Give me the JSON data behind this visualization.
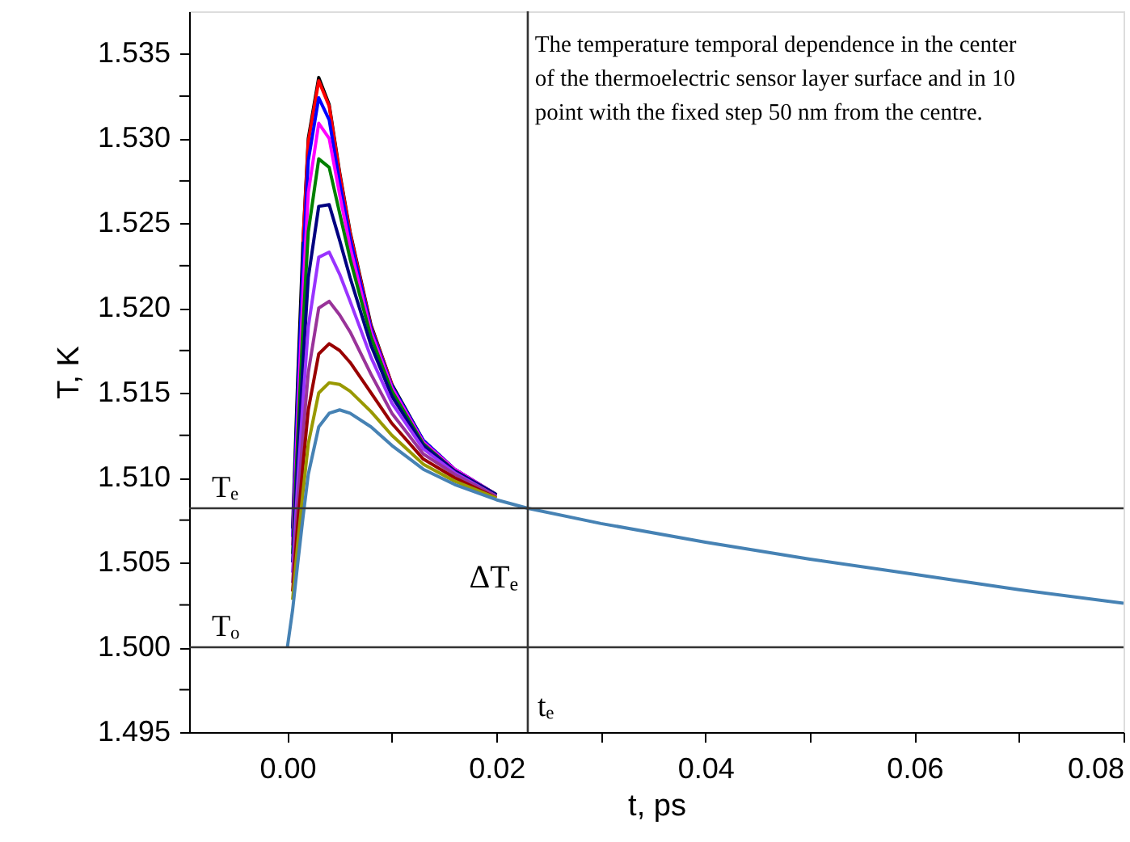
{
  "chart_data": {
    "type": "line",
    "xlabel": "t, ps",
    "ylabel": "T, K",
    "x": [
      0,
      0.0005,
      0.001,
      0.0015,
      0.002,
      0.003,
      0.004,
      0.005,
      0.006,
      0.008,
      0.01,
      0.013,
      0.016,
      0.02,
      0.023,
      0.03,
      0.04,
      0.05,
      0.06,
      0.07,
      0.08
    ],
    "series": [
      {
        "color": "#000000",
        "values": [
          null,
          1.507,
          1.516,
          1.524,
          1.53,
          1.5336,
          1.532,
          1.528,
          1.5245,
          1.519,
          1.5155,
          1.5122,
          1.5105,
          1.509,
          null,
          null,
          null,
          null,
          null,
          null,
          null
        ]
      },
      {
        "color": "#ff0000",
        "values": [
          null,
          null,
          null,
          1.5239,
          1.5298,
          1.5334,
          1.5319,
          1.5279,
          1.5244,
          1.5189,
          1.5155,
          null,
          null,
          null,
          null,
          null,
          null,
          null,
          null,
          null,
          null
        ]
      },
      {
        "color": "#0000ff",
        "values": [
          null,
          1.5065,
          1.515,
          1.5228,
          1.5287,
          1.5324,
          1.5311,
          1.5274,
          1.5241,
          1.5188,
          1.5154,
          1.5122,
          1.5105,
          1.509,
          null,
          null,
          null,
          null,
          null,
          null,
          null
        ]
      },
      {
        "color": "#ff00ff",
        "values": [
          null,
          1.506,
          1.5138,
          1.521,
          1.5268,
          1.5309,
          1.53,
          1.5267,
          1.5236,
          1.5186,
          1.5153,
          1.5121,
          1.5105,
          1.509,
          null,
          null,
          null,
          null,
          null,
          null,
          null
        ]
      },
      {
        "color": "#008000",
        "values": [
          null,
          1.5055,
          1.5125,
          1.519,
          1.5245,
          1.5288,
          1.5283,
          1.5256,
          1.5229,
          1.5183,
          1.5151,
          1.512,
          1.5104,
          1.509,
          null,
          null,
          null,
          null,
          null,
          null,
          null
        ]
      },
      {
        "color": "#000080",
        "values": [
          null,
          1.505,
          1.5112,
          1.5168,
          1.5218,
          1.526,
          1.5261,
          1.524,
          1.5218,
          1.5178,
          1.5148,
          1.5119,
          1.5104,
          1.509,
          null,
          null,
          null,
          null,
          null,
          null,
          null
        ]
      },
      {
        "color": "#9933ff",
        "values": [
          null,
          1.5044,
          1.5098,
          1.5146,
          1.5189,
          1.523,
          1.5233,
          1.522,
          1.5204,
          1.5171,
          1.5144,
          1.5117,
          1.5103,
          1.5089,
          null,
          null,
          null,
          null,
          null,
          null,
          null
        ]
      },
      {
        "color": "#993399",
        "values": [
          null,
          1.5038,
          1.5085,
          1.5126,
          1.5162,
          1.52,
          1.5204,
          1.5196,
          1.5186,
          1.5161,
          1.5138,
          1.5114,
          1.5102,
          1.5089,
          null,
          null,
          null,
          null,
          null,
          null,
          null
        ]
      },
      {
        "color": "#990000",
        "values": [
          null,
          1.5033,
          1.5073,
          1.5108,
          1.514,
          1.5173,
          1.5179,
          1.5175,
          1.5168,
          1.515,
          1.5132,
          1.5111,
          1.51,
          1.5088,
          null,
          null,
          null,
          null,
          null,
          null,
          null
        ]
      },
      {
        "color": "#999900",
        "values": [
          null,
          1.5028,
          1.5062,
          1.5092,
          1.512,
          1.515,
          1.5156,
          1.5155,
          1.5151,
          1.5139,
          1.5125,
          1.5108,
          1.5098,
          1.5088,
          null,
          null,
          null,
          null,
          null,
          null,
          null
        ]
      },
      {
        "color": "#4682b4",
        "values": [
          1.5,
          1.5022,
          1.505,
          1.5077,
          1.5102,
          1.513,
          1.5138,
          1.514,
          1.5138,
          1.513,
          1.5119,
          1.5105,
          1.5096,
          1.5087,
          1.5082,
          1.5073,
          1.5062,
          1.5052,
          1.5043,
          1.5034,
          1.5026
        ]
      }
    ],
    "xlim": [
      -0.0094,
      0.08
    ],
    "xticks": [
      {
        "value": 0.0,
        "label": "0.00"
      },
      {
        "value": 0.01,
        "label": null
      },
      {
        "value": 0.02,
        "label": "0.02"
      },
      {
        "value": 0.03,
        "label": null
      },
      {
        "value": 0.04,
        "label": "0.04"
      },
      {
        "value": 0.05,
        "label": null
      },
      {
        "value": 0.06,
        "label": "0.06"
      },
      {
        "value": 0.07,
        "label": null
      },
      {
        "value": 0.08,
        "label": "0.08"
      }
    ],
    "ylim": [
      1.495,
      1.5375
    ],
    "yticks": [
      {
        "value": 1.495,
        "label": "1.495"
      },
      {
        "value": 1.4975,
        "label": null
      },
      {
        "value": 1.5,
        "label": "1.500"
      },
      {
        "value": 1.5025,
        "label": null
      },
      {
        "value": 1.505,
        "label": "1.505"
      },
      {
        "value": 1.5075,
        "label": null
      },
      {
        "value": 1.51,
        "label": "1.510"
      },
      {
        "value": 1.5125,
        "label": null
      },
      {
        "value": 1.515,
        "label": "1.515"
      },
      {
        "value": 1.5175,
        "label": null
      },
      {
        "value": 1.52,
        "label": "1.520"
      },
      {
        "value": 1.5225,
        "label": null
      },
      {
        "value": 1.525,
        "label": "1.525"
      },
      {
        "value": 1.5275,
        "label": null
      },
      {
        "value": 1.53,
        "label": "1.530"
      },
      {
        "value": 1.5325,
        "label": null
      },
      {
        "value": 1.535,
        "label": "1.535"
      }
    ],
    "ref_lines": [
      {
        "axis": "y",
        "value": 1.5082,
        "label": "Tₑ",
        "color": "#333333"
      },
      {
        "axis": "y",
        "value": 1.5,
        "label": "Tₒ",
        "color": "#333333"
      },
      {
        "axis": "x",
        "value": 0.023,
        "label": "tₑ",
        "color": "#333333"
      }
    ],
    "annotations": [
      "The temperature temporal dependence in the center\nof the thermoelectric sensor layer surface and in 10\npoint with the fixed step 50 nm from the centre.",
      {
        "text": "ΔTₑ",
        "x": 0.023,
        "y": 1.5041
      }
    ],
    "grid": false,
    "marker": "none",
    "line_style": "solid"
  }
}
